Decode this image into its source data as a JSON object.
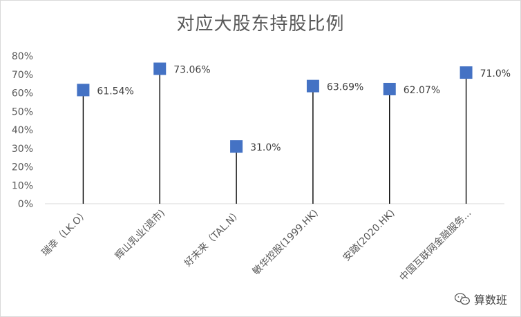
{
  "chart_data": {
    "type": "lollipop",
    "title": "对应大股东持股比例",
    "categories": [
      "瑞幸（LK.O）",
      "辉山乳业(退市)",
      "好未来（TAL.N）",
      "敏华控股(1999.HK)",
      "安踏(2020.HK)",
      "中国互联网金融服务..."
    ],
    "values": [
      61.54,
      73.06,
      31.0,
      63.69,
      62.07,
      71.0
    ],
    "data_labels": [
      "61.54%",
      "73.06%",
      "31.0%",
      "63.69%",
      "62.07%",
      "71.0%"
    ],
    "y_ticks": [
      "0%",
      "10%",
      "20%",
      "30%",
      "40%",
      "50%",
      "60%",
      "70%",
      "80%"
    ],
    "ylim": [
      0,
      80
    ],
    "grid": false,
    "legend": "none",
    "marker_color": "#4472c4",
    "stem_color": "#000000"
  },
  "watermark": {
    "label": "算数班",
    "icon": "wechat-icon"
  }
}
